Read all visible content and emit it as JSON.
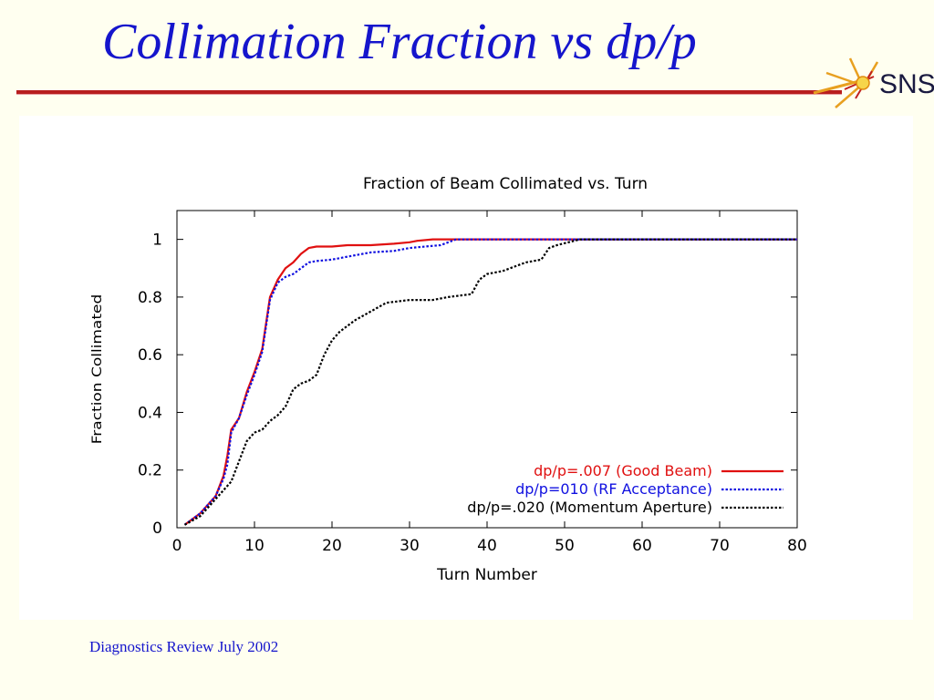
{
  "slide": {
    "title": "Collimation Fraction vs dp/p",
    "footer": "Diagnostics Review July 2002",
    "logo_text": "SNS",
    "accent_color": "#1515cc",
    "rule_color": "#b81e1e"
  },
  "chart_data": {
    "type": "line",
    "title": "Fraction of Beam Collimated vs. Turn",
    "xlabel": "Turn Number",
    "ylabel": "Fraction Collimated",
    "xlim": [
      0,
      80
    ],
    "ylim": [
      0,
      1.1
    ],
    "xticks": [
      0,
      10,
      20,
      30,
      40,
      50,
      60,
      70,
      80
    ],
    "xtick_labels": [
      "0",
      "10",
      "20",
      "30",
      "40",
      "50",
      "60",
      "70",
      "80"
    ],
    "yticks": [
      0,
      0.2,
      0.4,
      0.6,
      0.8,
      1
    ],
    "ytick_labels": [
      "0",
      "0.2",
      "0.4",
      "0.6",
      "0.8",
      "1"
    ],
    "grid": false,
    "legend_position": "bottom-right",
    "series": [
      {
        "name": "dp/p=.007 (Good Beam)",
        "color": "#e01010",
        "dash": "solid",
        "x": [
          1,
          3,
          5,
          6,
          6.5,
          7,
          8,
          9,
          10,
          11,
          12,
          13,
          14,
          15,
          16,
          17,
          18,
          20,
          22,
          25,
          28,
          30,
          31,
          33,
          35,
          40,
          50,
          60,
          70,
          80
        ],
        "y": [
          0.01,
          0.05,
          0.11,
          0.18,
          0.25,
          0.34,
          0.38,
          0.47,
          0.54,
          0.62,
          0.8,
          0.86,
          0.9,
          0.92,
          0.95,
          0.97,
          0.975,
          0.975,
          0.98,
          0.98,
          0.985,
          0.99,
          0.995,
          1.0,
          1.0,
          1.0,
          1.0,
          1.0,
          1.0,
          1.0
        ]
      },
      {
        "name": "dp/p=010 (RF Acceptance)",
        "color": "#1010e0",
        "dash": "dot",
        "x": [
          1,
          3,
          5,
          6,
          6.5,
          7,
          8,
          9,
          10,
          11,
          12,
          13,
          14,
          15,
          16,
          17,
          18,
          20,
          22,
          25,
          28,
          30,
          32,
          34,
          35,
          36,
          40,
          50,
          60,
          70,
          80
        ],
        "y": [
          0.01,
          0.05,
          0.11,
          0.17,
          0.22,
          0.33,
          0.38,
          0.46,
          0.53,
          0.61,
          0.79,
          0.85,
          0.87,
          0.88,
          0.9,
          0.92,
          0.925,
          0.93,
          0.94,
          0.955,
          0.96,
          0.97,
          0.975,
          0.98,
          0.99,
          1.0,
          1.0,
          1.0,
          1.0,
          1.0,
          1.0
        ]
      },
      {
        "name": "dp/p=.020 (Momentum Aperture)",
        "color": "#000000",
        "dash": "dot",
        "x": [
          1,
          3,
          5,
          6,
          7,
          8,
          9,
          10,
          11,
          12,
          13,
          14,
          15,
          16,
          17,
          18,
          19,
          20,
          21,
          22,
          23,
          25,
          27,
          30,
          33,
          35,
          38,
          39,
          40,
          42,
          45,
          47,
          48,
          49,
          52,
          55,
          60,
          70,
          80
        ],
        "y": [
          0.01,
          0.04,
          0.1,
          0.13,
          0.16,
          0.23,
          0.3,
          0.33,
          0.34,
          0.37,
          0.39,
          0.42,
          0.48,
          0.5,
          0.51,
          0.53,
          0.6,
          0.65,
          0.68,
          0.7,
          0.72,
          0.75,
          0.78,
          0.79,
          0.79,
          0.8,
          0.81,
          0.86,
          0.88,
          0.89,
          0.92,
          0.93,
          0.97,
          0.98,
          1.0,
          1.0,
          1.0,
          1.0,
          1.0
        ]
      }
    ]
  }
}
